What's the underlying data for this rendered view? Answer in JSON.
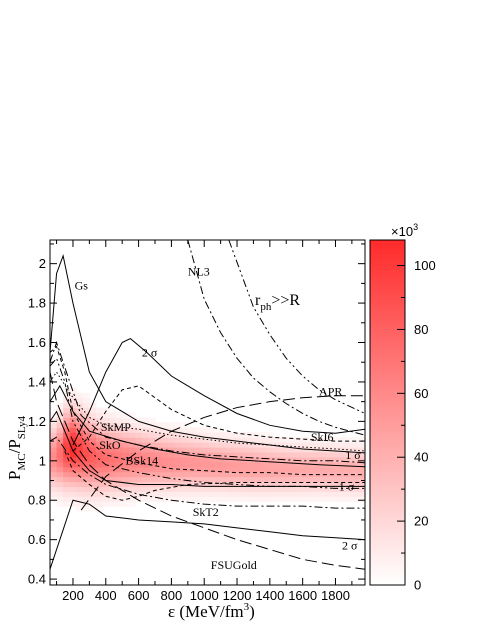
{
  "chart_data": {
    "type": "heatmap",
    "xlabel": "ε (MeV/fm",
    "xlabel_sup": "3",
    "xlabel_end": ")",
    "ylabel_main": "P",
    "ylabel_sub1": "MC",
    "ylabel_mid": "/P",
    "ylabel_sub2": "SLy4",
    "annotation": {
      "main": "r",
      "sub": "ph",
      "rest": ">>R"
    },
    "xlim": [
      60,
      1980
    ],
    "ylim": [
      0.37,
      2.12
    ],
    "x_ticks": [
      200,
      400,
      600,
      800,
      1000,
      1200,
      1400,
      1600,
      1800
    ],
    "y_ticks": [
      0.4,
      0.6,
      0.8,
      1,
      1.2,
      1.4,
      1.6,
      1.8,
      2
    ],
    "colorbar": {
      "min": 0,
      "max": 108000,
      "ticks": [
        0,
        20,
        40,
        60,
        80,
        100
      ],
      "multiplier": "×10",
      "multiplier_sup": "3",
      "color_low": "#ffffff",
      "color_high": "#ff2a2a"
    },
    "heatmap_ridge": [
      {
        "x": 100,
        "y": 1.02,
        "w": 0.1,
        "level": 0.55
      },
      {
        "x": 150,
        "y": 1.06,
        "w": 0.12,
        "level": 0.85
      },
      {
        "x": 200,
        "y": 1.07,
        "w": 0.12,
        "level": 1.0
      },
      {
        "x": 260,
        "y": 1.05,
        "w": 0.12,
        "level": 0.85
      },
      {
        "x": 350,
        "y": 1.02,
        "w": 0.11,
        "level": 0.72
      },
      {
        "x": 500,
        "y": 1.01,
        "w": 0.1,
        "level": 0.62
      },
      {
        "x": 700,
        "y": 1.0,
        "w": 0.09,
        "level": 0.55
      },
      {
        "x": 900,
        "y": 0.99,
        "w": 0.085,
        "level": 0.5
      },
      {
        "x": 1100,
        "y": 0.98,
        "w": 0.08,
        "level": 0.48
      },
      {
        "x": 1300,
        "y": 0.97,
        "w": 0.08,
        "level": 0.45
      },
      {
        "x": 1500,
        "y": 0.96,
        "w": 0.075,
        "level": 0.42
      },
      {
        "x": 1700,
        "y": 0.96,
        "w": 0.075,
        "level": 0.4
      },
      {
        "x": 1950,
        "y": 0.95,
        "w": 0.075,
        "level": 0.38
      }
    ],
    "series": [
      {
        "name": "Gs",
        "style": "solid",
        "points": [
          [
            60,
            1.55
          ],
          [
            100,
            1.95
          ],
          [
            140,
            2.04
          ],
          [
            200,
            1.8
          ],
          [
            300,
            1.45
          ],
          [
            400,
            1.3
          ],
          [
            600,
            1.2
          ],
          [
            800,
            1.15
          ],
          [
            1000,
            1.12
          ],
          [
            1200,
            1.1
          ],
          [
            1400,
            1.08
          ],
          [
            1600,
            1.06
          ],
          [
            1800,
            1.05
          ],
          [
            1980,
            1.04
          ]
        ]
      },
      {
        "name": "NL3",
        "style": "dashdotdot",
        "points": [
          [
            1150,
            2.12
          ],
          [
            1300,
            1.78
          ],
          [
            1400,
            1.64
          ],
          [
            1500,
            1.52
          ],
          [
            1600,
            1.43
          ],
          [
            1700,
            1.36
          ],
          [
            1800,
            1.31
          ],
          [
            1980,
            1.24
          ]
        ]
      },
      {
        "name": "",
        "style": "dashdot",
        "points": [
          [
            900,
            2.12
          ],
          [
            1000,
            1.82
          ],
          [
            1100,
            1.65
          ],
          [
            1200,
            1.52
          ],
          [
            1300,
            1.42
          ],
          [
            1400,
            1.35
          ],
          [
            1500,
            1.29
          ],
          [
            1600,
            1.24
          ],
          [
            1700,
            1.2
          ],
          [
            1800,
            1.17
          ],
          [
            1980,
            1.13
          ]
        ]
      },
      {
        "name": "2 σ",
        "style": "solid",
        "points": [
          [
            200,
            1.08
          ],
          [
            300,
            1.25
          ],
          [
            400,
            1.45
          ],
          [
            500,
            1.6
          ],
          [
            550,
            1.62
          ],
          [
            650,
            1.55
          ],
          [
            800,
            1.43
          ],
          [
            1000,
            1.33
          ],
          [
            1200,
            1.24
          ],
          [
            1400,
            1.18
          ],
          [
            1600,
            1.15
          ],
          [
            1800,
            1.14
          ],
          [
            1980,
            1.16
          ]
        ]
      },
      {
        "name": "",
        "style": "shortdash",
        "points": [
          [
            200,
            1.05
          ],
          [
            300,
            1.12
          ],
          [
            400,
            1.25
          ],
          [
            500,
            1.36
          ],
          [
            600,
            1.38
          ],
          [
            700,
            1.32
          ],
          [
            800,
            1.26
          ],
          [
            1000,
            1.18
          ],
          [
            1200,
            1.14
          ],
          [
            1400,
            1.12
          ],
          [
            1600,
            1.11
          ],
          [
            1800,
            1.1
          ],
          [
            1980,
            1.1
          ]
        ]
      },
      {
        "name": "APR",
        "style": "longdash",
        "points": [
          [
            250,
            0.75
          ],
          [
            400,
            0.92
          ],
          [
            600,
            1.05
          ],
          [
            800,
            1.15
          ],
          [
            1000,
            1.22
          ],
          [
            1200,
            1.27
          ],
          [
            1400,
            1.3
          ],
          [
            1600,
            1.32
          ],
          [
            1800,
            1.33
          ],
          [
            1980,
            1.33
          ]
        ]
      },
      {
        "name": "SkI6",
        "style": "dotted",
        "points": [
          [
            60,
            1.4
          ],
          [
            100,
            1.45
          ],
          [
            200,
            1.32
          ],
          [
            300,
            1.22
          ],
          [
            400,
            1.18
          ],
          [
            600,
            1.16
          ],
          [
            800,
            1.13
          ],
          [
            1000,
            1.11
          ],
          [
            1200,
            1.09
          ],
          [
            1400,
            1.08
          ],
          [
            1600,
            1.07
          ],
          [
            1800,
            1.06
          ],
          [
            1980,
            1.05
          ]
        ]
      },
      {
        "name": "SkMP",
        "style": "dashdot",
        "points": [
          [
            60,
            1.5
          ],
          [
            100,
            1.6
          ],
          [
            160,
            1.45
          ],
          [
            250,
            1.23
          ],
          [
            400,
            1.12
          ],
          [
            600,
            1.08
          ],
          [
            800,
            1.05
          ],
          [
            1000,
            1.03
          ],
          [
            1200,
            1.02
          ],
          [
            1400,
            1.01
          ],
          [
            1600,
            1.0
          ],
          [
            1800,
            1.0
          ],
          [
            1980,
            0.99
          ]
        ]
      },
      {
        "name": "1 σ",
        "style": "solid",
        "points": [
          [
            60,
            1.3
          ],
          [
            120,
            1.38
          ],
          [
            200,
            1.25
          ],
          [
            300,
            1.15
          ],
          [
            500,
            1.1
          ],
          [
            700,
            1.06
          ],
          [
            900,
            1.03
          ],
          [
            1100,
            1.01
          ],
          [
            1300,
            1.0
          ],
          [
            1500,
            0.99
          ],
          [
            1700,
            0.98
          ],
          [
            1980,
            0.97
          ]
        ]
      },
      {
        "name": "SkO",
        "style": "shortdash",
        "points": [
          [
            60,
            1.55
          ],
          [
            100,
            1.58
          ],
          [
            150,
            1.45
          ],
          [
            200,
            1.25
          ],
          [
            300,
            1.1
          ],
          [
            400,
            1.03
          ],
          [
            600,
            0.99
          ],
          [
            800,
            0.96
          ],
          [
            1000,
            0.95
          ],
          [
            1200,
            0.94
          ],
          [
            1400,
            0.94
          ],
          [
            1600,
            0.93
          ],
          [
            1800,
            0.93
          ],
          [
            1980,
            0.93
          ]
        ]
      },
      {
        "name": "BSk14",
        "style": "dashdotdot",
        "points": [
          [
            60,
            1.48
          ],
          [
            100,
            1.52
          ],
          [
            150,
            1.4
          ],
          [
            200,
            1.2
          ],
          [
            300,
            1.05
          ],
          [
            400,
            0.98
          ],
          [
            600,
            0.94
          ],
          [
            800,
            0.91
          ],
          [
            1000,
            0.89
          ],
          [
            1200,
            0.88
          ],
          [
            1400,
            0.87
          ],
          [
            1600,
            0.87
          ],
          [
            1800,
            0.86
          ],
          [
            1980,
            0.86
          ]
        ]
      },
      {
        "name": "1 σ",
        "style": "solid",
        "points": [
          [
            60,
            1.2
          ],
          [
            100,
            1.25
          ],
          [
            150,
            1.15
          ],
          [
            200,
            1.05
          ],
          [
            300,
            0.95
          ],
          [
            400,
            0.9
          ],
          [
            600,
            0.88
          ],
          [
            800,
            0.88
          ],
          [
            1000,
            0.87
          ],
          [
            1200,
            0.87
          ],
          [
            1400,
            0.87
          ],
          [
            1600,
            0.87
          ],
          [
            1800,
            0.87
          ],
          [
            1980,
            0.87
          ]
        ]
      },
      {
        "name": "",
        "style": "shortdash",
        "points": [
          [
            150,
            1.05
          ],
          [
            200,
            0.95
          ],
          [
            300,
            0.88
          ],
          [
            400,
            0.82
          ],
          [
            500,
            0.8
          ],
          [
            600,
            0.82
          ],
          [
            700,
            0.85
          ],
          [
            900,
            0.88
          ],
          [
            1200,
            0.89
          ],
          [
            1500,
            0.89
          ],
          [
            1980,
            0.89
          ]
        ]
      },
      {
        "name": "SkT2",
        "style": "dashdot",
        "points": [
          [
            60,
            1.1
          ],
          [
            100,
            1.12
          ],
          [
            200,
            1.0
          ],
          [
            300,
            0.93
          ],
          [
            400,
            0.88
          ],
          [
            600,
            0.83
          ],
          [
            800,
            0.8
          ],
          [
            1000,
            0.78
          ],
          [
            1200,
            0.77
          ],
          [
            1400,
            0.77
          ],
          [
            1600,
            0.77
          ],
          [
            1800,
            0.76
          ],
          [
            1980,
            0.76
          ]
        ]
      },
      {
        "name": "2 σ",
        "style": "solid",
        "points": [
          [
            60,
            0.45
          ],
          [
            120,
            0.6
          ],
          [
            200,
            0.8
          ],
          [
            300,
            0.78
          ],
          [
            400,
            0.72
          ],
          [
            600,
            0.7
          ],
          [
            800,
            0.69
          ],
          [
            1000,
            0.68
          ],
          [
            1200,
            0.66
          ],
          [
            1400,
            0.64
          ],
          [
            1600,
            0.62
          ],
          [
            1800,
            0.61
          ],
          [
            1980,
            0.6
          ]
        ]
      },
      {
        "name": "FSUGold",
        "style": "longdash",
        "points": [
          [
            60,
            1.45
          ],
          [
            100,
            1.3
          ],
          [
            200,
            1.1
          ],
          [
            300,
            0.98
          ],
          [
            400,
            0.9
          ],
          [
            600,
            0.8
          ],
          [
            800,
            0.72
          ],
          [
            1000,
            0.66
          ],
          [
            1200,
            0.6
          ],
          [
            1400,
            0.55
          ],
          [
            1600,
            0.5
          ],
          [
            1800,
            0.47
          ],
          [
            1980,
            0.45
          ]
        ]
      }
    ],
    "labels": [
      {
        "text": "Gs",
        "x": 210,
        "y": 1.87
      },
      {
        "text": "NL3",
        "x": 900,
        "y": 1.94
      },
      {
        "text": "2 σ",
        "x": 620,
        "y": 1.53
      },
      {
        "text": "APR",
        "x": 1700,
        "y": 1.33
      },
      {
        "text": "SkMP",
        "x": 370,
        "y": 1.15
      },
      {
        "text": "SkI6",
        "x": 1650,
        "y": 1.1
      },
      {
        "text": "SkO",
        "x": 360,
        "y": 1.06
      },
      {
        "text": "1 σ",
        "x": 1860,
        "y": 1.01
      },
      {
        "text": "BSk14",
        "x": 520,
        "y": 0.98
      },
      {
        "text": "1 σ",
        "x": 1820,
        "y": 0.85
      },
      {
        "text": "SkT2",
        "x": 930,
        "y": 0.72
      },
      {
        "text": "2 σ",
        "x": 1840,
        "y": 0.55
      },
      {
        "text": "FSUGold",
        "x": 1040,
        "y": 0.45
      }
    ]
  }
}
